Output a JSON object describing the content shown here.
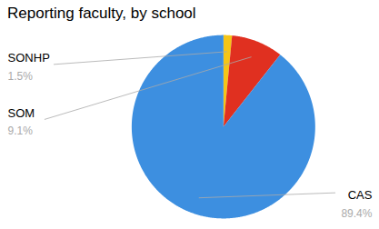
{
  "chart_data": {
    "type": "pie",
    "title": "Reporting faculty, by school",
    "categories": [
      "SONHP",
      "SOM",
      "CAS"
    ],
    "values": [
      1.5,
      9.1,
      89.4
    ],
    "value_labels": [
      "1.5%",
      "9.1%",
      "89.4%"
    ],
    "colors": [
      "#f5c518",
      "#e03020",
      "#3d8fe0"
    ],
    "data_labels": true
  }
}
